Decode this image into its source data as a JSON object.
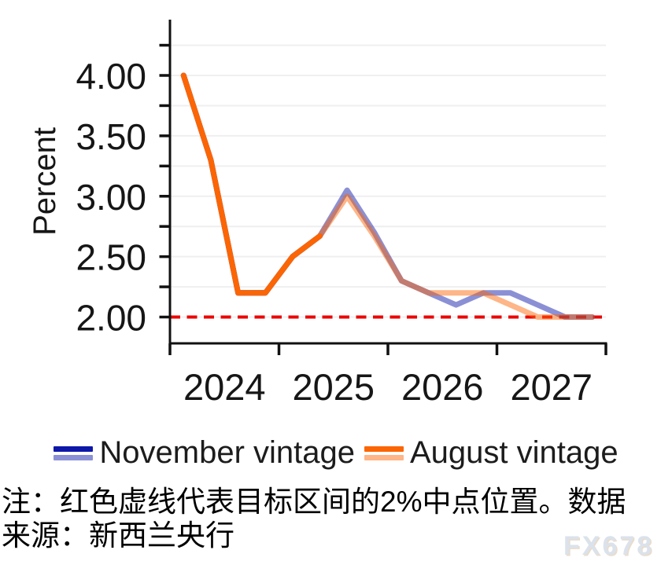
{
  "chart_data": {
    "type": "line",
    "title": "",
    "ylabel": "Percent",
    "unit": "%",
    "x_year_labels": [
      "2024",
      "2025",
      "2026",
      "2027"
    ],
    "quarters": [
      "2024Q1",
      "2024Q2",
      "2024Q3",
      "2024Q4",
      "2025Q1",
      "2025Q2",
      "2025Q3",
      "2025Q4",
      "2026Q1",
      "2026Q2",
      "2026Q3",
      "2026Q4",
      "2027Q1",
      "2027Q2",
      "2027Q3",
      "2027Q4"
    ],
    "series": [
      {
        "name": "November vintage",
        "color": "#0d17a8",
        "forecast_opacity": 0.48,
        "forecast_start_index": 5,
        "values": [
          4.0,
          3.3,
          2.2,
          2.2,
          2.5,
          2.67,
          3.05,
          2.7,
          2.3,
          2.2,
          2.1,
          2.2,
          2.2,
          2.1,
          2.0,
          2.0
        ]
      },
      {
        "name": "August vintage",
        "color": "#fc6504",
        "forecast_opacity": 0.48,
        "forecast_start_index": 5,
        "values": [
          4.0,
          3.3,
          2.2,
          2.2,
          2.5,
          2.67,
          3.0,
          2.67,
          2.3,
          2.2,
          2.2,
          2.2,
          2.1,
          2.0,
          2.0,
          2.0
        ]
      }
    ],
    "reference_line": {
      "value": 2.0,
      "color": "#ed0000",
      "style": "dashed"
    },
    "y_axis": {
      "ticks": [
        2.0,
        2.25,
        2.5,
        2.75,
        3.0,
        3.25,
        3.5,
        3.75,
        4.0,
        4.25
      ],
      "labeled_ticks": [
        "2.00",
        "2.50",
        "3.00",
        "3.50",
        "4.00"
      ],
      "range_shown": [
        1.8,
        4.45
      ]
    },
    "grid": "horizontal",
    "gridline_color": "#efefef",
    "legend_position": "bottom"
  },
  "note": {
    "lines": [
      "注：红色虚线代表目标区间的2%中点位置。数据",
      "来源：新西兰央行"
    ]
  },
  "watermark": "FX678"
}
